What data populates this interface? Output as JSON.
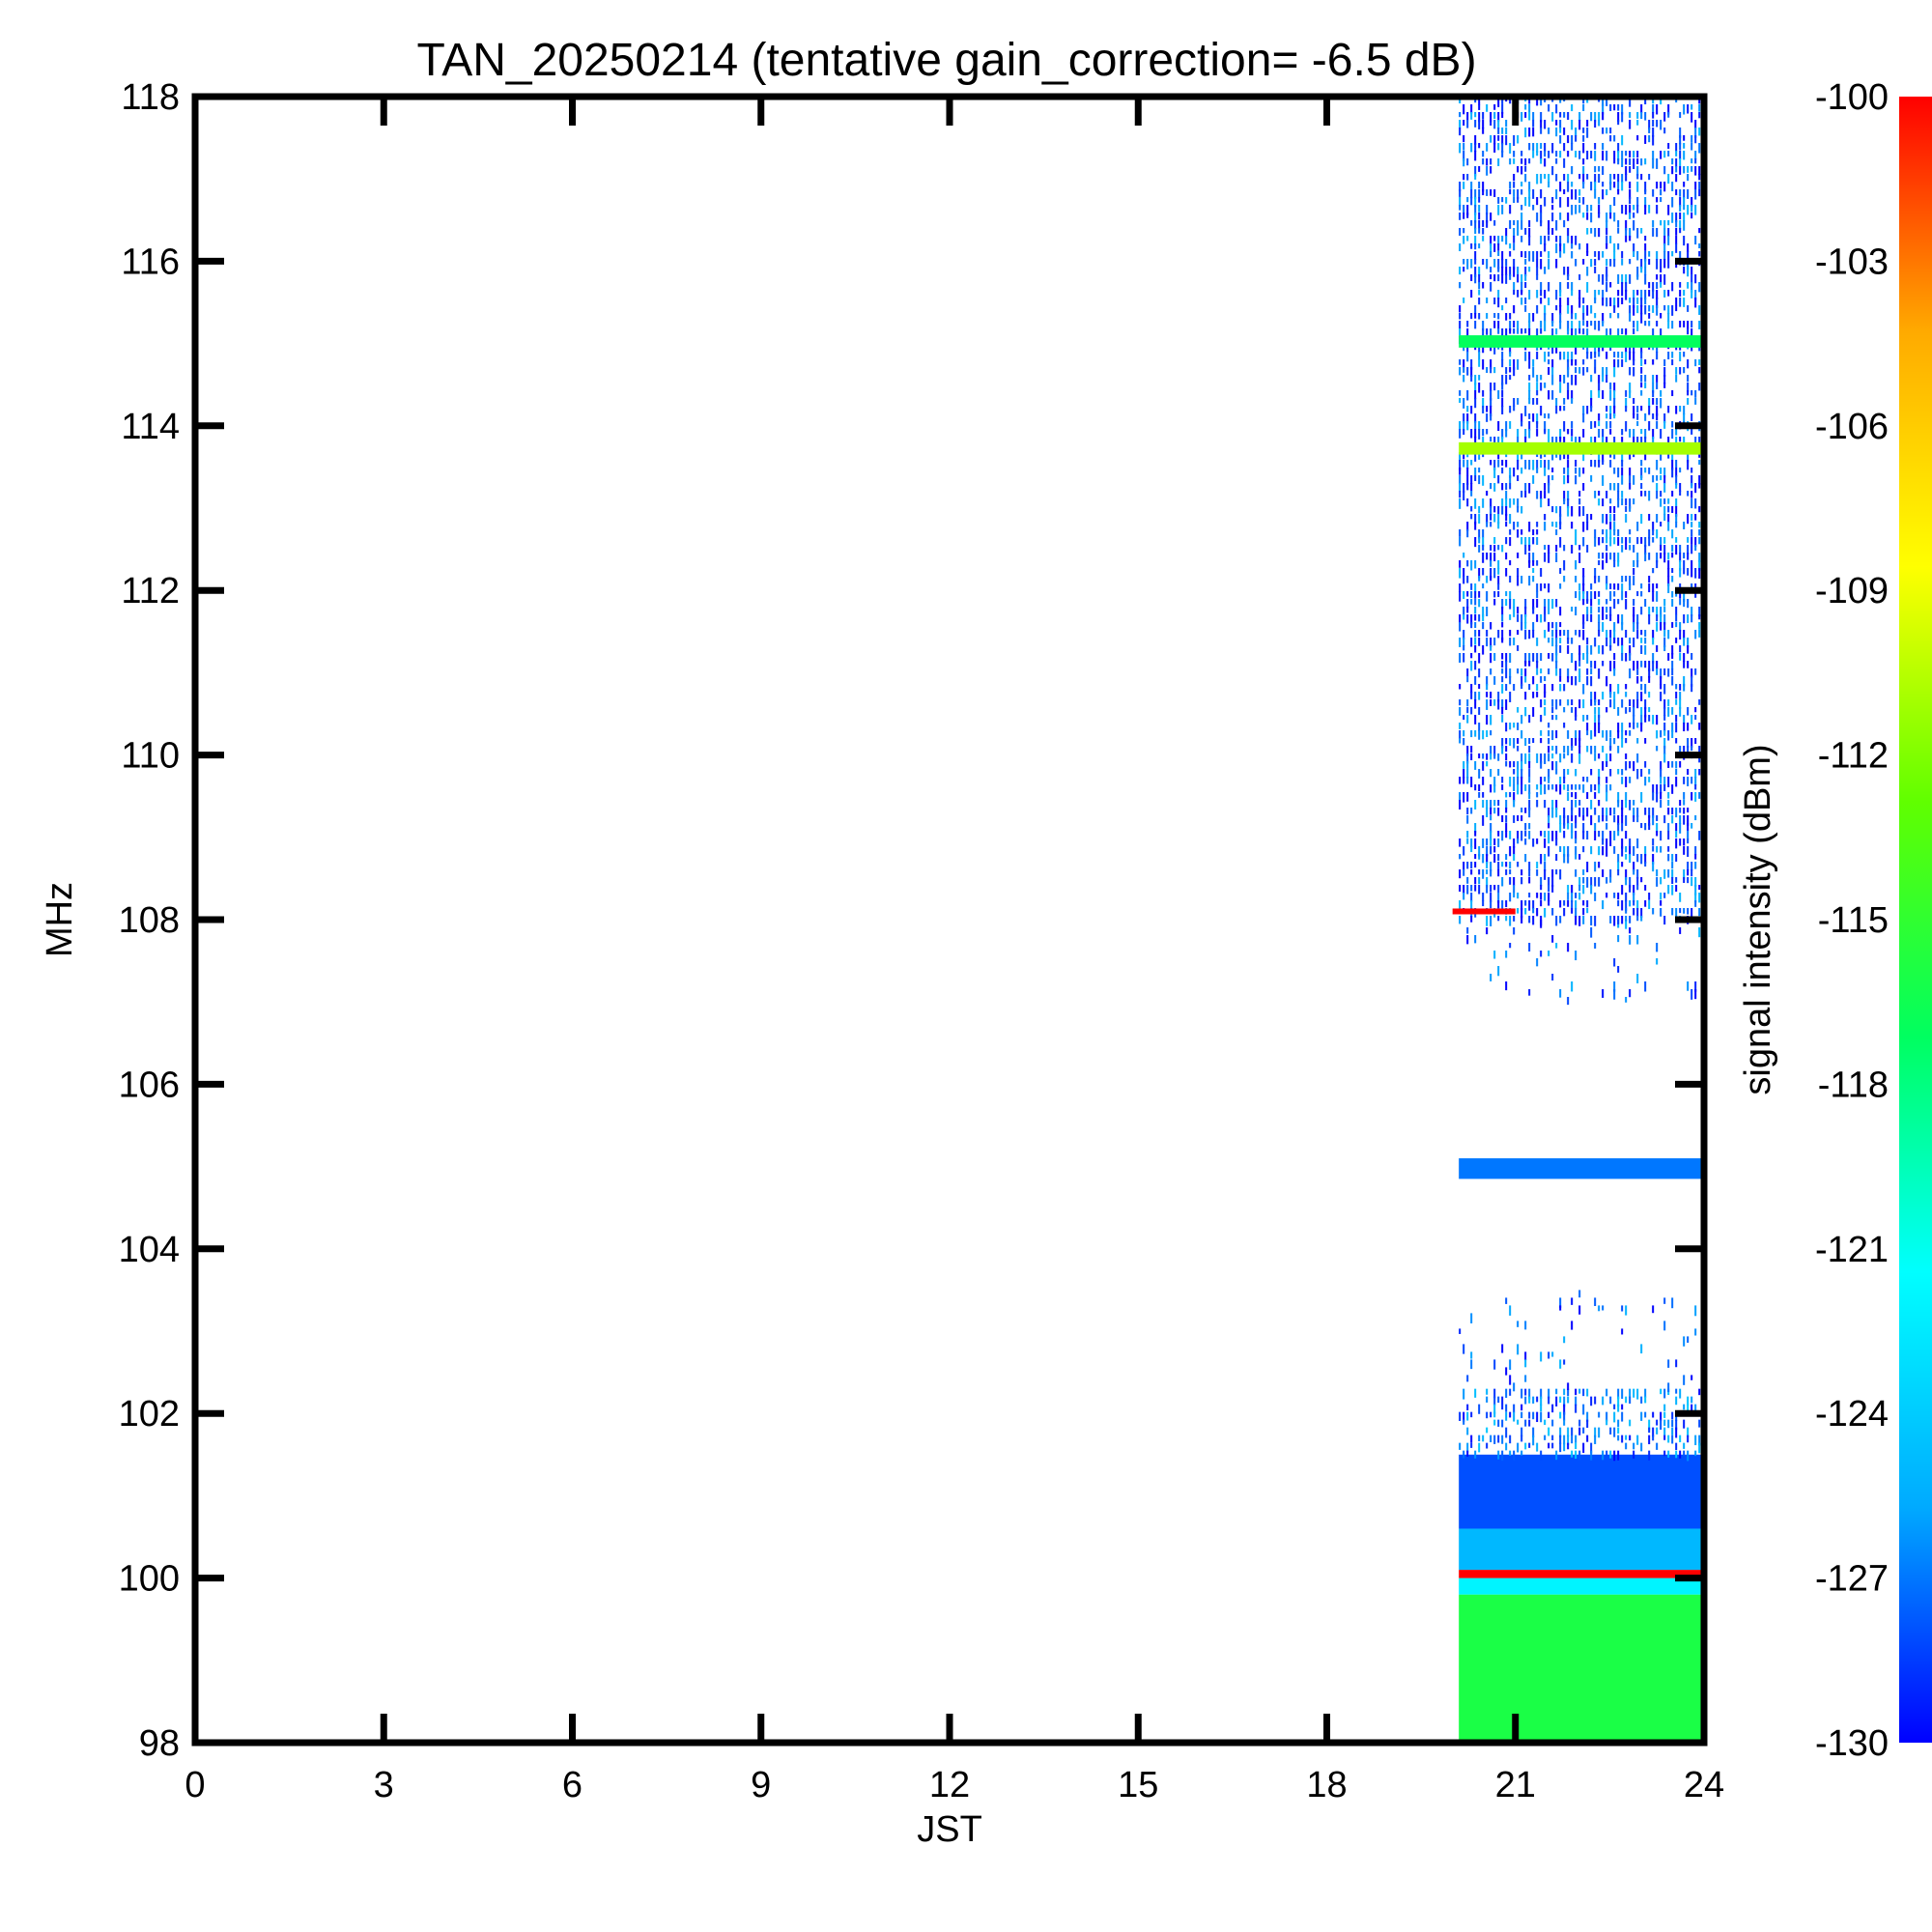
{
  "chart_data": {
    "type": "heatmap",
    "title": "TAN_20250214 (tentative gain_correction= -6.5 dB)",
    "xlabel": "JST",
    "ylabel": "MHz",
    "colorbar_label": "signal intensity (dBm)",
    "xlim": [
      0,
      24
    ],
    "ylim": [
      98,
      118
    ],
    "x_ticks": [
      "0",
      "3",
      "6",
      "9",
      "12",
      "15",
      "18",
      "21",
      "24"
    ],
    "y_ticks": [
      "98",
      "100",
      "102",
      "104",
      "106",
      "108",
      "110",
      "112",
      "114",
      "116",
      "118"
    ],
    "colorbar_range": [
      -130,
      -100
    ],
    "colorbar_ticks": [
      "-100",
      "-103",
      "-106",
      "-109",
      "-112",
      "-115",
      "-118",
      "-121",
      "-124",
      "-127",
      "-130"
    ],
    "colormap": [
      "#0000ff",
      "#00aaff",
      "#00ffff",
      "#00ff60",
      "#60ff00",
      "#ffff00",
      "#ffaa00",
      "#ff0000"
    ],
    "data_time_range": [
      20.1,
      24
    ],
    "bands": [
      {
        "f0": 98.0,
        "f1": 99.8,
        "value": -116
      },
      {
        "f0": 99.8,
        "f1": 100.0,
        "value": -122
      },
      {
        "f0": 100.0,
        "f1": 100.1,
        "value": -100
      },
      {
        "f0": 100.1,
        "f1": 100.6,
        "value": -125
      },
      {
        "f0": 100.6,
        "f1": 101.5,
        "value": -128
      },
      {
        "f0": 101.5,
        "f1": 102.3,
        "value": -127,
        "sparse": true
      },
      {
        "f0": 102.3,
        "f1": 103.5,
        "value": -128,
        "sparse": true,
        "density": 0.05
      },
      {
        "f0": 104.85,
        "f1": 105.1,
        "value": -127
      },
      {
        "f0": 107.0,
        "f1": 108.0,
        "value": -128,
        "sparse": true,
        "density": 0.08
      },
      {
        "f0": 108.0,
        "f1": 118.0,
        "value": -128,
        "sparse": true
      },
      {
        "f0": 113.65,
        "f1": 113.8,
        "value": -111
      },
      {
        "f0": 114.95,
        "f1": 115.1,
        "value": -117
      }
    ],
    "short_trace": {
      "t0": 20.0,
      "t1": 21.0,
      "f": 108.1,
      "value": -100
    }
  }
}
